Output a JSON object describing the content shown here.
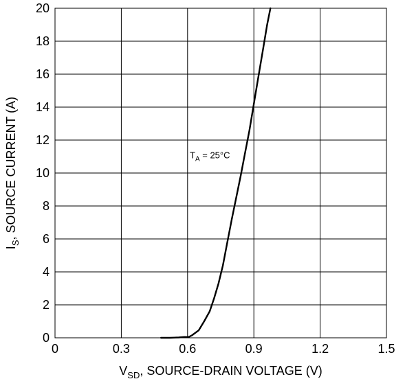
{
  "chart_data": {
    "type": "line",
    "xlim": [
      0,
      1.5
    ],
    "ylim": [
      0,
      20
    ],
    "x_ticks": [
      "0",
      "0.3",
      "0.6",
      "0.9",
      "1.2",
      "1.5"
    ],
    "y_ticks": [
      "0",
      "2",
      "4",
      "6",
      "8",
      "10",
      "12",
      "14",
      "16",
      "18",
      "20"
    ],
    "grid": true,
    "xlabel": {
      "main": "V",
      "sub": "SD",
      "rest": ", SOURCE-DRAIN VOLTAGE (V)"
    },
    "ylabel": {
      "main": "I",
      "sub": "S",
      "rest": ", SOURCE CURRENT (A)"
    },
    "annotation": {
      "main": "T",
      "sub": "A",
      "rest": " = 25°C",
      "x": 0.61,
      "y": 10.9
    },
    "line_color": "#000000",
    "series": [
      {
        "x": [
          0.48,
          0.52,
          0.56,
          0.585,
          0.605,
          0.62,
          0.65,
          0.675,
          0.7,
          0.72,
          0.74,
          0.76,
          0.78,
          0.8,
          0.82,
          0.84,
          0.86,
          0.88,
          0.9,
          0.92,
          0.94,
          0.96,
          0.975
        ],
        "y": [
          0.0,
          0.0,
          0.02,
          0.05,
          0.05,
          0.15,
          0.45,
          1.0,
          1.6,
          2.4,
          3.3,
          4.4,
          5.8,
          7.2,
          8.5,
          9.8,
          11.2,
          12.6,
          14.2,
          15.8,
          17.4,
          19.0,
          20.0
        ]
      }
    ]
  }
}
